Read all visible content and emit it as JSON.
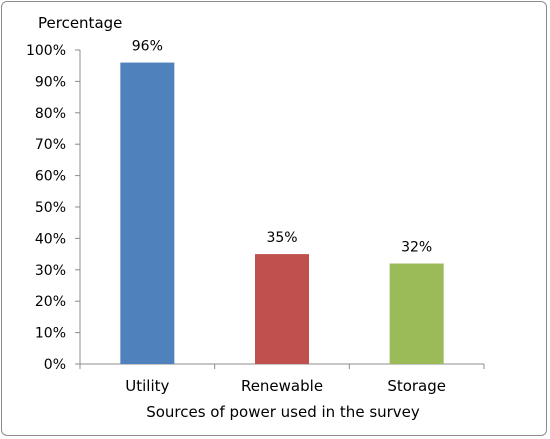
{
  "chart_data": {
    "type": "bar",
    "categories": [
      "Utility",
      "Renewable",
      "Storage"
    ],
    "values": [
      96,
      35,
      32
    ],
    "data_labels": [
      "96%",
      "35%",
      "32%"
    ],
    "colors": [
      "#4F81BD",
      "#C0504D",
      "#9BBB59"
    ],
    "ylabel": "Percentage",
    "xlabel": "Sources of power used in the survey",
    "ylim": [
      0,
      100
    ],
    "yticks": [
      "0%",
      "10%",
      "20%",
      "30%",
      "40%",
      "50%",
      "60%",
      "70%",
      "80%",
      "90%",
      "100%"
    ],
    "grid": false,
    "legend": "none"
  }
}
